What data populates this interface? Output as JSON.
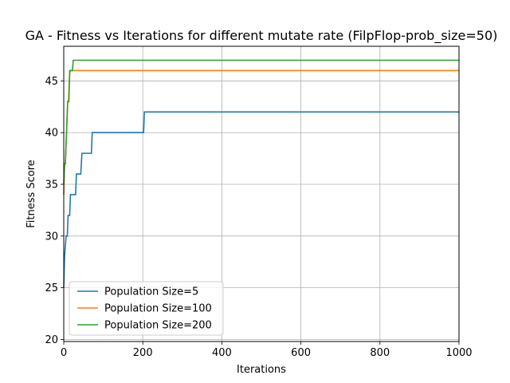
{
  "chart_data": {
    "type": "line",
    "title": "GA - Fitness vs Iterations for different mutate rate (FilpFlop-prob_size=50)",
    "xlabel": "Iterations",
    "ylabel": "Fitness Score",
    "xlim": [
      0,
      1000
    ],
    "ylim": [
      19.8,
      48.35
    ],
    "x_ticks": [
      0,
      200,
      400,
      600,
      800,
      1000
    ],
    "y_ticks": [
      20,
      25,
      30,
      35,
      40,
      45
    ],
    "grid": true,
    "legend_position": "lower-left",
    "series": [
      {
        "name": "Population Size=5",
        "color": "#1f77b4",
        "x": [
          0,
          2,
          4,
          6,
          9,
          11,
          15,
          17,
          30,
          32,
          43,
          46,
          70,
          72,
          202,
          204,
          1000
        ],
        "y": [
          25,
          28,
          29,
          30,
          30,
          32,
          32,
          34,
          34,
          36,
          36,
          38,
          38,
          40,
          40,
          42,
          42
        ]
      },
      {
        "name": "Population Size=100",
        "color": "#ff7f0e",
        "x": [
          0,
          2,
          4,
          6,
          8,
          10,
          12,
          14,
          16,
          18,
          1000
        ],
        "y": [
          34,
          37,
          37,
          39,
          41,
          43,
          43,
          45,
          46,
          46,
          46
        ]
      },
      {
        "name": "Population Size=200",
        "color": "#2ca02c",
        "x": [
          0,
          2,
          4,
          6,
          8,
          10,
          13,
          15,
          22,
          24,
          1000
        ],
        "y": [
          35,
          37,
          37,
          39,
          41,
          43,
          43,
          46,
          46,
          47,
          47
        ]
      }
    ]
  }
}
